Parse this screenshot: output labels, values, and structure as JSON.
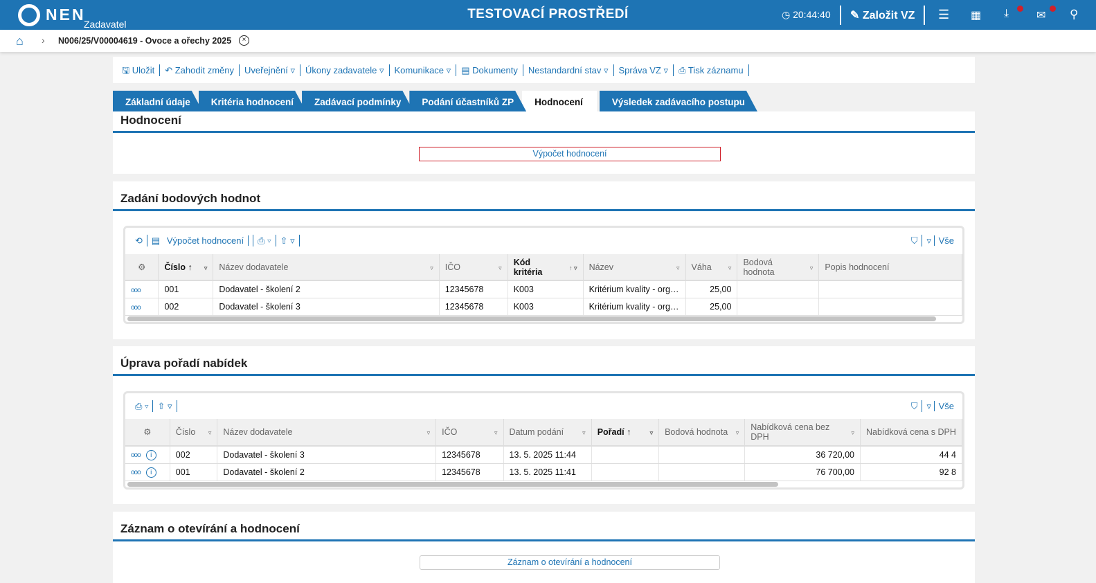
{
  "header": {
    "logo": "NEN",
    "role": "Zadavatel",
    "environment": "TESTOVACÍ PROSTŘEDÍ",
    "time": "20:44:40",
    "create_label": "Založit VZ",
    "icons": [
      "clock-icon",
      "edit-icon",
      "menu-icon",
      "calendar-icon",
      "download-icon",
      "mail-icon",
      "user-icon"
    ],
    "accent": "#1e74b4",
    "badge_color": "#d0202a"
  },
  "breadcrumb": {
    "title": "N006/25/V00004619 - Ovoce a ořechy 2025"
  },
  "toolbar": {
    "items": [
      "Uložit",
      "Zahodit změny",
      "Uveřejnění ▿",
      "Úkony zadavatele ▿",
      "Komunikace ▿",
      "Dokumenty",
      "Nestandardní stav ▿",
      "Správa VZ ▿",
      "Tisk záznamu"
    ]
  },
  "tabs": [
    "Základní údaje",
    "Kritéria hodnocení",
    "Zadávací podmínky",
    "Podání účastníků ZP",
    "Hodnocení",
    "Výsledek zadávacího postupu"
  ],
  "active_tab": "Hodnocení",
  "section1": {
    "title": "Hodnocení",
    "button": "Výpočet hodnocení"
  },
  "section2": {
    "title": "Zadání bodových hodnot",
    "toolbar_calc": "Výpočet hodnocení",
    "filter_all": "Vše",
    "columns": [
      "Číslo",
      "Název dodavatele",
      "IČO",
      "Kód kritéria",
      "Název",
      "Váha",
      "Bodová hodnota",
      "Popis hodnocení"
    ],
    "rows": [
      [
        "001",
        "Dodavatel - školení 2",
        "12345678",
        "K003",
        "Kritérium kvality - org…",
        "25,00",
        "",
        ""
      ],
      [
        "002",
        "Dodavatel - školení 3",
        "12345678",
        "K003",
        "Kritérium kvality - org…",
        "25,00",
        "",
        ""
      ]
    ]
  },
  "section3": {
    "title": "Úprava pořadí nabídek",
    "filter_all": "Vše",
    "columns": [
      "Číslo",
      "Název dodavatele",
      "IČO",
      "Datum podání",
      "Pořadí",
      "Bodová hodnota",
      "Nabídková cena bez DPH",
      "Nabídková cena s DPH"
    ],
    "rows": [
      [
        "002",
        "Dodavatel - školení 3",
        "12345678",
        "13. 5. 2025 11:44",
        "",
        "",
        "36 720,00",
        "44 4"
      ],
      [
        "001",
        "Dodavatel - školení 2",
        "12345678",
        "13. 5. 2025 11:41",
        "",
        "",
        "76 700,00",
        "92 8"
      ]
    ]
  },
  "section4": {
    "title": "Záznam o otevírání a hodnocení",
    "button": "Záznam o otevírání a hodnocení"
  }
}
